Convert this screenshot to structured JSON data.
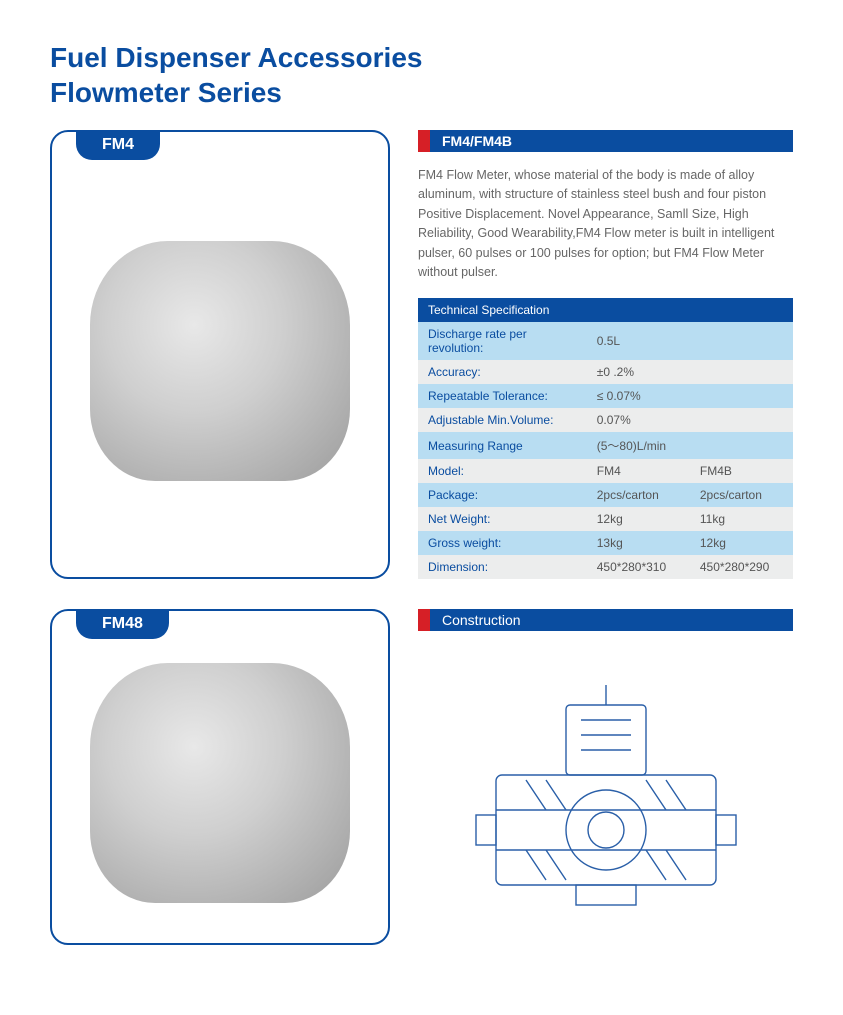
{
  "title_line1": "Fuel Dispenser Accessories",
  "title_line2": "Flowmeter Series",
  "products": {
    "p1_label": "FM4",
    "p2_label": "FM48"
  },
  "section1": {
    "header": "FM4/FM4B",
    "description": "FM4 Flow Meter, whose material of the body is made of alloy aluminum, with structure of stainless steel bush and four piston Positive Displacement. Novel Appearance, Samll Size, High Reliability, Good Wearability,FM4 Flow meter is built in intelligent pulser, 60 pulses or 100 pulses for option; but FM4 Flow Meter without pulser."
  },
  "spec": {
    "header": "Technical Specification",
    "rows_single": [
      {
        "label": "Discharge rate per revolution:",
        "value": "0.5L",
        "band": "blue"
      },
      {
        "label": "Accuracy:",
        "value": "±0 .2%",
        "band": "gray"
      },
      {
        "label": "Repeatable Tolerance:",
        "value": "≤ 0.07%",
        "band": "blue"
      },
      {
        "label": "Adjustable Min.Volume:",
        "value": "0.07%",
        "band": "gray"
      },
      {
        "label": "Measuring Range",
        "value": "(5～80)L/min",
        "band": "blue"
      }
    ],
    "rows_double": [
      {
        "label": "Model:",
        "v1": "FM4",
        "v2": "FM4B",
        "band": "gray"
      },
      {
        "label": "Package:",
        "v1": "2pcs/carton",
        "v2": "2pcs/carton",
        "band": "blue"
      },
      {
        "label": "Net Weight:",
        "v1": "12kg",
        "v2": "11kg",
        "band": "gray"
      },
      {
        "label": "Gross weight:",
        "v1": "13kg",
        "v2": "12kg",
        "band": "blue"
      },
      {
        "label": "Dimension:",
        "v1": "450*280*310",
        "v2": "450*280*290",
        "band": "gray"
      }
    ]
  },
  "section2": {
    "header": "Construction"
  },
  "colors": {
    "brand_blue": "#0a4da0",
    "accent_red": "#d61f26",
    "band_blue": "#b8ddf2",
    "band_gray": "#eceded",
    "text_gray": "#666666",
    "diagram_stroke": "#2a5fa8"
  }
}
